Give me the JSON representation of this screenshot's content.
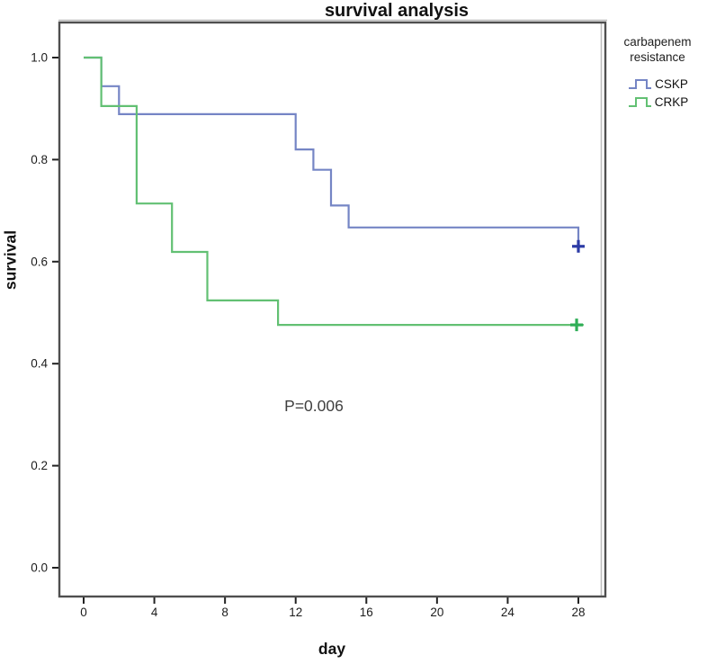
{
  "title": "survival analysis",
  "p_value_annotation": "P=0.006",
  "axes": {
    "x_label": "day",
    "y_label": "survival"
  },
  "legend": {
    "title_line1": "carbapenem",
    "title_line2": "resistance",
    "entries": [
      {
        "label": "CSKP",
        "color": "#7585c5"
      },
      {
        "label": "CRKP",
        "color": "#62c073"
      }
    ]
  },
  "chart_data": {
    "type": "line",
    "subtype": "kaplan-meier-step",
    "title": "survival analysis",
    "xlabel": "day",
    "ylabel": "survival",
    "xlim": [
      -1.4,
      29.5
    ],
    "ylim": [
      -0.06,
      1.07
    ],
    "x_ticks": [
      "0",
      "4",
      "8",
      "12",
      "16",
      "20",
      "24",
      "28"
    ],
    "y_ticks": [
      "0.0",
      "0.2",
      "0.4",
      "0.6",
      "0.8",
      "1.0"
    ],
    "grid": false,
    "legend_position": "right",
    "annotation": {
      "text": "P=0.006",
      "x": 13,
      "y": 0.315
    },
    "series": [
      {
        "name": "CSKP",
        "color": "#7585c5",
        "censor_color": "#2c3ba6",
        "steps": [
          [
            0,
            1.0
          ],
          [
            1,
            0.944
          ],
          [
            2,
            0.889
          ],
          [
            12,
            0.82
          ],
          [
            13,
            0.78
          ],
          [
            14,
            0.71
          ],
          [
            15,
            0.667
          ],
          [
            28,
            0.63
          ]
        ],
        "end_day": 28,
        "censored": [
          [
            28,
            0.63
          ]
        ]
      },
      {
        "name": "CRKP",
        "color": "#62c073",
        "censor_color": "#2fae57",
        "steps": [
          [
            0,
            1.0
          ],
          [
            1,
            0.905
          ],
          [
            3,
            0.714
          ],
          [
            5,
            0.619
          ],
          [
            7,
            0.524
          ],
          [
            11,
            0.476
          ]
        ],
        "end_day": 28.3,
        "censored": [
          [
            27.9,
            0.476
          ]
        ]
      }
    ]
  }
}
